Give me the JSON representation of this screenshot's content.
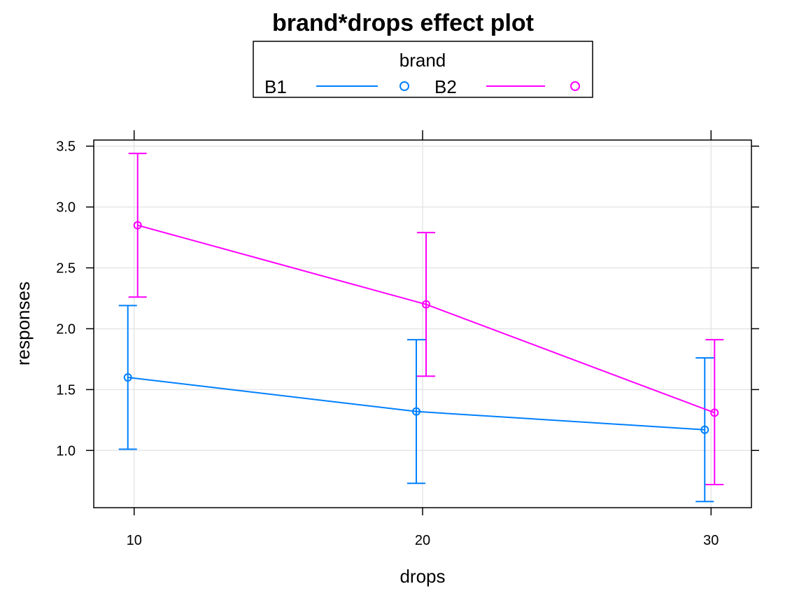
{
  "chart_data": {
    "type": "line",
    "title": "brand*drops effect plot",
    "xlabel": "drops",
    "ylabel": "responses",
    "x": [
      10,
      20,
      30
    ],
    "xlim": [
      8.6,
      31.4
    ],
    "ylim": [
      0.53,
      3.55
    ],
    "x_ticks": [
      10,
      20,
      30
    ],
    "y_ticks": [
      "1.0",
      "1.5",
      "2.0",
      "2.5",
      "3.0",
      "3.5"
    ],
    "grid": true,
    "legend": {
      "title": "brand",
      "placement": "top-center"
    },
    "series": [
      {
        "name": "B1",
        "color": "#0080ff",
        "values": [
          1.6,
          1.32,
          1.17
        ],
        "lower": [
          1.01,
          0.73,
          0.58
        ],
        "upper": [
          2.19,
          1.91,
          1.76
        ]
      },
      {
        "name": "B2",
        "color": "#ff00ff",
        "values": [
          2.85,
          2.2,
          1.31
        ],
        "lower": [
          2.26,
          1.61,
          0.72
        ],
        "upper": [
          3.44,
          2.79,
          1.91
        ]
      }
    ]
  }
}
